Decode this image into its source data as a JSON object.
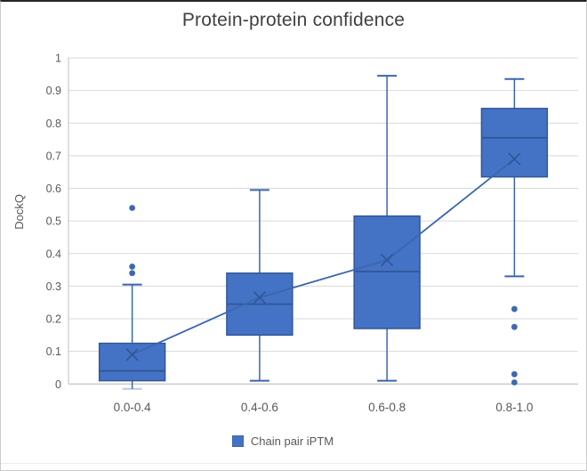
{
  "title": "Protein-protein confidence",
  "legend": {
    "label": "Chain pair iPTM"
  },
  "colors": {
    "box_fill": "#4472C4",
    "box_stroke": "#2F5597",
    "whisker": "#3A66AE",
    "mean_line": "#3A66AE",
    "mean_marker": "#2F5597",
    "outlier": "#3E68B2",
    "gridline": "#D9D9D9",
    "axis_line": "#BFBFBF",
    "tick_text": "#595959",
    "title_text": "#404040"
  },
  "chart_data": {
    "type": "boxplot",
    "title": "Protein-protein confidence",
    "xlabel": "",
    "ylabel": "DockQ",
    "ylim": [
      0,
      1
    ],
    "ytick_step": 0.1,
    "ytick_labels": [
      "0",
      "0.1",
      "0.2",
      "0.3",
      "0.4",
      "0.5",
      "0.6",
      "0.7",
      "0.8",
      "0.9",
      "1"
    ],
    "grid": true,
    "legend_entries": [
      "Chain pair iPTM"
    ],
    "legend_position": "bottom",
    "categories": [
      "0.0-0.4",
      "0.4-0.6",
      "0.6-0.8",
      "0.8-1.0"
    ],
    "series": [
      {
        "name": "Chain pair iPTM",
        "show_mean_markers": true,
        "show_mean_line": true,
        "boxes": [
          {
            "category": "0.0-0.4",
            "whisker_low": -0.015,
            "q1": 0.01,
            "median": 0.04,
            "mean": 0.09,
            "q3": 0.125,
            "whisker_high": 0.305,
            "outliers": [
              0.34,
              0.36,
              0.54
            ]
          },
          {
            "category": "0.4-0.6",
            "whisker_low": 0.01,
            "q1": 0.15,
            "median": 0.245,
            "mean": 0.265,
            "q3": 0.34,
            "whisker_high": 0.595,
            "outliers": []
          },
          {
            "category": "0.6-0.8",
            "whisker_low": 0.01,
            "q1": 0.17,
            "median": 0.345,
            "mean": 0.38,
            "q3": 0.515,
            "whisker_high": 0.945,
            "outliers": []
          },
          {
            "category": "0.8-1.0",
            "whisker_low": 0.33,
            "q1": 0.635,
            "median": 0.755,
            "mean": 0.69,
            "q3": 0.845,
            "whisker_high": 0.935,
            "outliers": [
              0.005,
              0.03,
              0.175,
              0.23
            ]
          }
        ]
      }
    ]
  }
}
